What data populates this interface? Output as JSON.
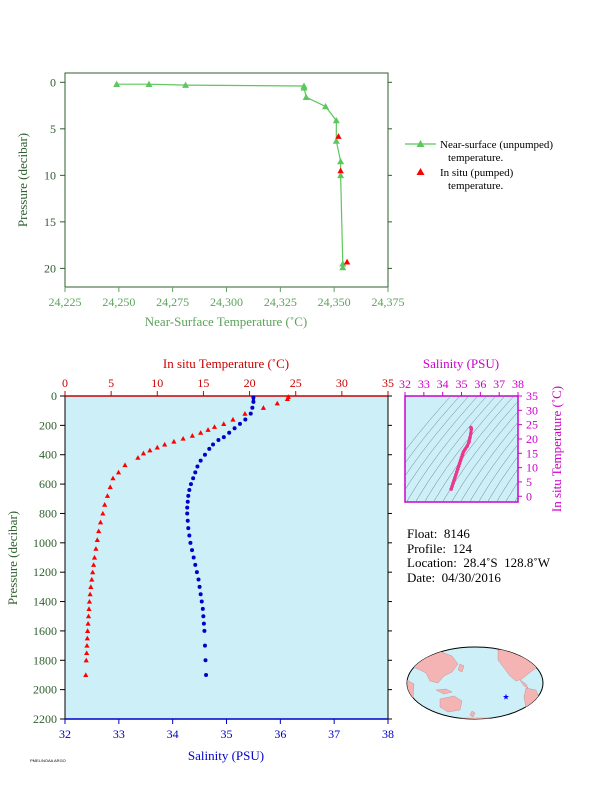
{
  "chart_data": [
    {
      "type": "line",
      "xlabel": "Near-Surface Temperature (˚C)",
      "ylabel": "Pressure (decibar)",
      "xlim": [
        24.225,
        24.375
      ],
      "ylim": [
        22,
        -1
      ],
      "xticks": [
        "24,225",
        "24,250",
        "24,275",
        "24,300",
        "24,325",
        "24,350",
        "24,375"
      ],
      "yticks": [
        "0",
        "5",
        "10",
        "15",
        "20"
      ],
      "colors": {
        "axis": "#5aa35a",
        "near_surface": "#5cc75c",
        "in_situ": "#ff0000"
      },
      "legend": [
        {
          "label_line1": "Near-surface (unpumped)",
          "label_line2": "temperature."
        },
        {
          "label_line1": "In situ (pumped)",
          "label_line2": "temperature."
        }
      ],
      "series": [
        {
          "x": [
            24.249,
            24.264,
            24.281,
            24.336,
            24.336,
            24.337,
            24.346,
            24.351,
            24.351,
            24.353,
            24.353,
            24.354,
            24.354
          ],
          "y": [
            0.2,
            0.2,
            0.3,
            0.4,
            0.6,
            1.6,
            2.6,
            4.1,
            6.3,
            8.5,
            10.0,
            19.5,
            19.9
          ]
        },
        {
          "x": [
            24.352,
            24.353,
            24.356
          ],
          "y": [
            5.8,
            9.5,
            19.3
          ]
        }
      ]
    },
    {
      "type": "scatter",
      "title": "In situ Temperature (˚C)",
      "xlabel": "Salinity (PSU)",
      "ylabel": "Pressure (decibar)",
      "ylim": [
        2200,
        0
      ],
      "xlim_temperature": [
        0,
        35
      ],
      "xlim_salinity": [
        32,
        38
      ],
      "temperature_ticks": [
        "0",
        "5",
        "10",
        "15",
        "20",
        "25",
        "30",
        "35"
      ],
      "salinity_ticks": [
        "32",
        "33",
        "34",
        "35",
        "36",
        "37",
        "38"
      ],
      "pressure_ticks": [
        "0",
        "200",
        "400",
        "600",
        "800",
        "1000",
        "1200",
        "1400",
        "1600",
        "1800",
        "2000",
        "2200"
      ],
      "colors": {
        "background": "#cdeff8",
        "temperature": "#ff0000",
        "salinity": "#0000c8",
        "top_axis": "#cc0000"
      },
      "temperature_profile": {
        "x": [
          24.2,
          24.1,
          23.0,
          21.5,
          19.5,
          18.2,
          17.2,
          16.2,
          15.5,
          14.7,
          13.8,
          12.8,
          11.8,
          10.8,
          10.0,
          9.2,
          8.5,
          7.9,
          6.5,
          5.8,
          5.2,
          4.9,
          4.6,
          4.3,
          4.1,
          3.85,
          3.65,
          3.5,
          3.35,
          3.2,
          3.1,
          3.0,
          2.9,
          2.8,
          2.72,
          2.65,
          2.6,
          2.55,
          2.5,
          2.45,
          2.42,
          2.38,
          2.35,
          2.3,
          2.25
        ],
        "y": [
          5,
          20,
          50,
          80,
          120,
          160,
          190,
          210,
          230,
          250,
          270,
          290,
          310,
          330,
          350,
          370,
          390,
          420,
          470,
          520,
          560,
          620,
          680,
          740,
          800,
          860,
          920,
          980,
          1040,
          1100,
          1150,
          1200,
          1250,
          1300,
          1350,
          1400,
          1450,
          1500,
          1550,
          1600,
          1650,
          1700,
          1750,
          1800,
          1900
        ]
      },
      "salinity_profile": {
        "x": [
          35.5,
          35.5,
          35.48,
          35.45,
          35.35,
          35.25,
          35.15,
          35.05,
          34.95,
          34.85,
          34.75,
          34.68,
          34.6,
          34.52,
          34.46,
          34.42,
          34.38,
          34.34,
          34.31,
          34.29,
          34.28,
          34.27,
          34.27,
          34.28,
          34.29,
          34.31,
          34.33,
          34.36,
          34.39,
          34.42,
          34.45,
          34.48,
          34.5,
          34.52,
          34.54,
          34.56,
          34.57,
          34.58,
          34.59,
          34.6,
          34.61,
          34.62
        ],
        "y": [
          10,
          40,
          80,
          120,
          160,
          190,
          220,
          250,
          280,
          300,
          330,
          360,
          400,
          440,
          480,
          520,
          560,
          600,
          640,
          680,
          720,
          760,
          800,
          850,
          900,
          950,
          1000,
          1050,
          1100,
          1150,
          1200,
          1250,
          1300,
          1350,
          1400,
          1450,
          1500,
          1550,
          1600,
          1700,
          1800,
          1900
        ]
      }
    },
    {
      "type": "scatter",
      "title": "Salinity (PSU)",
      "ylabel": "In situ Temperature (˚C)",
      "xlim": [
        32,
        38
      ],
      "ylim": [
        -2,
        35
      ],
      "xticks": [
        "32",
        "33",
        "34",
        "35",
        "36",
        "37",
        "38"
      ],
      "yticks": [
        "0",
        "5",
        "10",
        "15",
        "20",
        "25",
        "30",
        "35"
      ],
      "colors": {
        "axis": "#cc00cc",
        "points": "#e8388f",
        "contours": "#6e7f8a"
      },
      "points": {
        "x": [
          34.45,
          34.5,
          34.55,
          34.6,
          34.65,
          34.7,
          34.75,
          34.8,
          34.85,
          34.9,
          34.95,
          35.0,
          35.05,
          35.1,
          35.2,
          35.3,
          35.4,
          35.45,
          35.5,
          35.52,
          35.5
        ],
        "y": [
          2.5,
          3.5,
          4.5,
          5.5,
          6.5,
          7.5,
          8.5,
          9.5,
          10.5,
          11.5,
          12.5,
          13.5,
          14.5,
          15.5,
          16.5,
          17.5,
          19.0,
          20.5,
          22.0,
          23.5,
          24.0
        ]
      }
    }
  ],
  "info": {
    "float": "Float:  8146",
    "profile": "Profile:  124",
    "location": "Location:  28.4˚S  128.8˚W",
    "date": "Date:  04/30/2016"
  },
  "map": {
    "land": "#f5b4b4",
    "ocean": "#cdeff8",
    "marker": "#0000ff"
  },
  "footnote": "PMEL/NOAA ARGO"
}
